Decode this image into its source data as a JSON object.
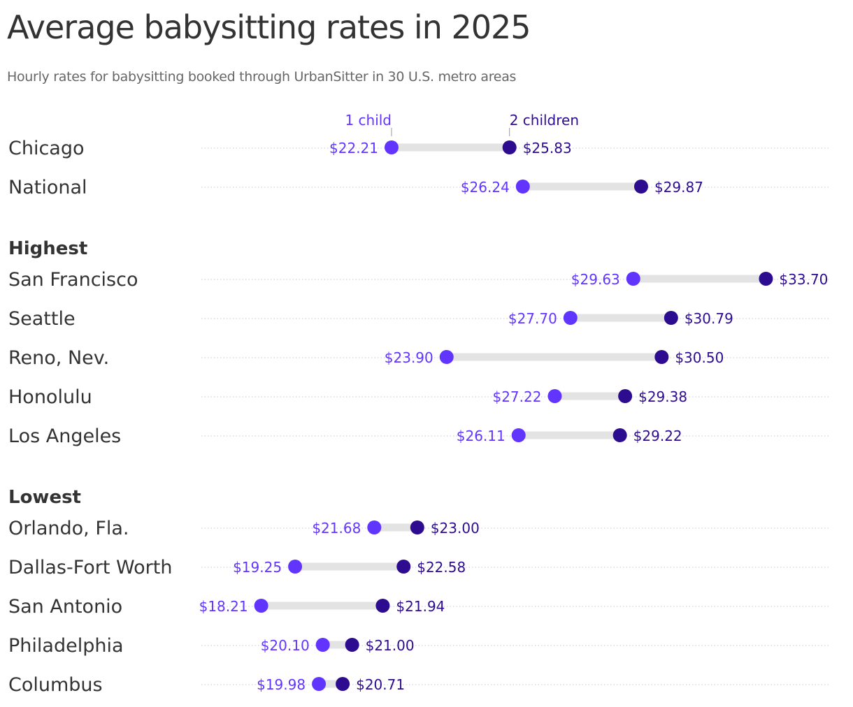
{
  "title": "Average babysitting rates in 2025",
  "subtitle": "Hourly rates for babysitting booked through UrbanSitter in 30 U.S. metro areas",
  "colors": {
    "one_child": "#6235ff",
    "two_children": "#2e0c8f",
    "bar": "#e3e3e3",
    "text": "#333333"
  },
  "chart_data": {
    "type": "dumbbell",
    "legend": {
      "one_child": "1 child",
      "two_children": "2 children"
    },
    "value_format": "$",
    "groups": [
      {
        "label": "",
        "rows": [
          {
            "name": "Chicago",
            "one_child": 22.21,
            "two_children": 25.83
          },
          {
            "name": "National",
            "one_child": 26.24,
            "two_children": 29.87
          }
        ]
      },
      {
        "label": "Highest",
        "rows": [
          {
            "name": "San Francisco",
            "one_child": 29.63,
            "two_children": 33.7
          },
          {
            "name": "Seattle",
            "one_child": 27.7,
            "two_children": 30.79
          },
          {
            "name": "Reno, Nev.",
            "one_child": 23.9,
            "two_children": 30.5
          },
          {
            "name": "Honolulu",
            "one_child": 27.22,
            "two_children": 29.38
          },
          {
            "name": "Los Angeles",
            "one_child": 26.11,
            "two_children": 29.22
          }
        ]
      },
      {
        "label": "Lowest",
        "rows": [
          {
            "name": "Orlando, Fla.",
            "one_child": 21.68,
            "two_children": 23.0
          },
          {
            "name": "Dallas-Fort Worth",
            "one_child": 19.25,
            "two_children": 22.58
          },
          {
            "name": "San Antonio",
            "one_child": 18.21,
            "two_children": 21.94
          },
          {
            "name": "Philadelphia",
            "one_child": 20.1,
            "two_children": 21.0
          },
          {
            "name": "Columbus",
            "one_child": 19.98,
            "two_children": 20.71
          }
        ]
      }
    ]
  }
}
